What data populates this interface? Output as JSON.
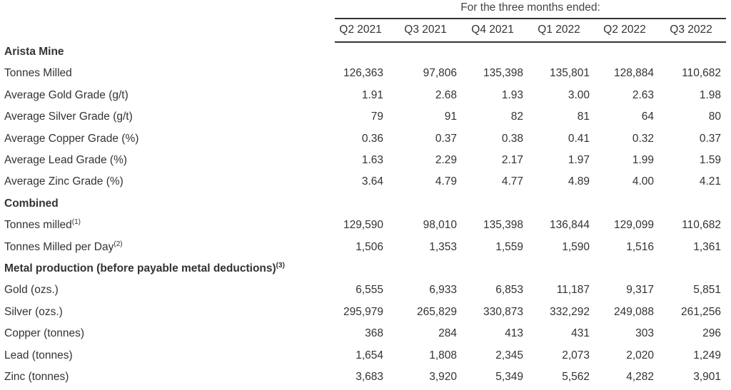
{
  "caption": "For the three months ended:",
  "columns": [
    "Q2 2021",
    "Q3 2021",
    "Q4 2021",
    "Q1 2022",
    "Q2 2022",
    "Q3 2022"
  ],
  "rows": [
    {
      "label": "Arista Mine",
      "bold": true,
      "values": []
    },
    {
      "label": "Tonnes Milled",
      "values": [
        "126,363",
        "97,806",
        "135,398",
        "135,801",
        "128,884",
        "110,682"
      ]
    },
    {
      "label": "Average Gold Grade (g/t)",
      "values": [
        "1.91",
        "2.68",
        "1.93",
        "3.00",
        "2.63",
        "1.98"
      ]
    },
    {
      "label": "Average Silver Grade (g/t)",
      "values": [
        "79",
        "91",
        "82",
        "81",
        "64",
        "80"
      ]
    },
    {
      "label": "Average Copper Grade (%)",
      "values": [
        "0.36",
        "0.37",
        "0.38",
        "0.41",
        "0.32",
        "0.37"
      ]
    },
    {
      "label": "Average Lead Grade (%)",
      "values": [
        "1.63",
        "2.29",
        "2.17",
        "1.97",
        "1.99",
        "1.59"
      ]
    },
    {
      "label": "Average Zinc Grade (%)",
      "values": [
        "3.64",
        "4.79",
        "4.77",
        "4.89",
        "4.00",
        "4.21"
      ]
    },
    {
      "label": "Combined",
      "bold": true,
      "values": []
    },
    {
      "label": "Tonnes milled",
      "note": "(1)",
      "values": [
        "129,590",
        "98,010",
        "135,398",
        "136,844",
        "129,099",
        "110,682"
      ]
    },
    {
      "label": "Tonnes Milled per Day",
      "note": "(2)",
      "values": [
        "1,506",
        "1,353",
        "1,559",
        "1,590",
        "1,516",
        "1,361"
      ]
    },
    {
      "label": "Metal production (before payable metal deductions)",
      "note": "(3)",
      "bold": true,
      "values": []
    },
    {
      "label": "Gold (ozs.)",
      "values": [
        "6,555",
        "6,933",
        "6,853",
        "11,187",
        "9,317",
        "5,851"
      ]
    },
    {
      "label": "Silver (ozs.)",
      "values": [
        "295,979",
        "265,829",
        "330,873",
        "332,292",
        "249,088",
        "261,256"
      ]
    },
    {
      "label": "Copper (tonnes)",
      "values": [
        "368",
        "284",
        "413",
        "431",
        "303",
        "296"
      ]
    },
    {
      "label": "Lead (tonnes)",
      "values": [
        "1,654",
        "1,808",
        "2,345",
        "2,073",
        "2,020",
        "1,249"
      ]
    },
    {
      "label": "Zinc (tonnes)",
      "values": [
        "3,683",
        "3,920",
        "5,349",
        "5,562",
        "4,282",
        "3,901"
      ]
    }
  ]
}
